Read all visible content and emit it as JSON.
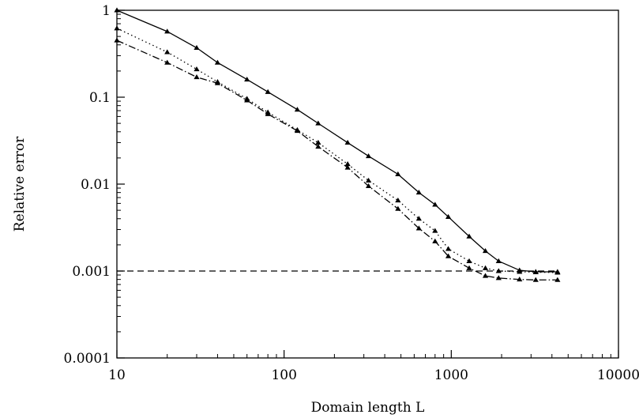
{
  "chart_data": {
    "type": "line",
    "title": "",
    "xlabel": "Domain length L",
    "ylabel": "Relative error",
    "xscale": "log",
    "yscale": "log",
    "xlim": [
      10,
      10000
    ],
    "ylim": [
      0.0001,
      1
    ],
    "grid": false,
    "legend": "none",
    "x_ticks": [
      {
        "value": 10,
        "label": "10"
      },
      {
        "value": 100,
        "label": "100"
      },
      {
        "value": 1000,
        "label": "1000"
      },
      {
        "value": 10000,
        "label": "10000"
      }
    ],
    "y_ticks": [
      {
        "value": 1,
        "label": "1"
      },
      {
        "value": 0.1,
        "label": "0.1"
      },
      {
        "value": 0.01,
        "label": "0.01"
      },
      {
        "value": 0.001,
        "label": "0.001"
      },
      {
        "value": 0.0001,
        "label": "0.0001"
      }
    ],
    "series": [
      {
        "style": "solid",
        "marker": "triangle",
        "color": "#000000",
        "x": [
          10,
          20,
          30,
          40,
          60,
          80,
          120,
          160,
          240,
          320,
          480,
          640,
          800,
          960,
          1280,
          1600,
          1920,
          2560,
          3200,
          4320
        ],
        "y": [
          1.0,
          0.57,
          0.37,
          0.25,
          0.16,
          0.115,
          0.072,
          0.05,
          0.03,
          0.021,
          0.013,
          0.008,
          0.0058,
          0.0042,
          0.0025,
          0.0017,
          0.0013,
          0.00102,
          0.00098,
          0.00098
        ]
      },
      {
        "style": "dotted",
        "marker": "triangle",
        "color": "#000000",
        "x": [
          10,
          20,
          30,
          40,
          60,
          80,
          120,
          160,
          240,
          320,
          480,
          640,
          800,
          960,
          1280,
          1600,
          1920,
          2560,
          3200,
          4320
        ],
        "y": [
          0.62,
          0.33,
          0.21,
          0.15,
          0.096,
          0.067,
          0.042,
          0.03,
          0.017,
          0.011,
          0.0065,
          0.004,
          0.0029,
          0.0018,
          0.0013,
          0.00108,
          0.001,
          0.00098,
          0.00097,
          0.00096
        ]
      },
      {
        "style": "dashdot",
        "marker": "triangle",
        "color": "#000000",
        "x": [
          10,
          20,
          30,
          40,
          60,
          80,
          120,
          160,
          240,
          320,
          480,
          640,
          800,
          960,
          1280,
          1600,
          1920,
          2560,
          3200,
          4320
        ],
        "y": [
          0.45,
          0.25,
          0.17,
          0.145,
          0.092,
          0.064,
          0.041,
          0.027,
          0.0155,
          0.0095,
          0.0052,
          0.0031,
          0.0022,
          0.00148,
          0.00108,
          0.00088,
          0.00083,
          0.0008,
          0.00079,
          0.00079
        ]
      },
      {
        "style": "dashed",
        "marker": "none",
        "color": "#000000",
        "x": [
          10,
          4320
        ],
        "y": [
          0.001,
          0.001
        ]
      }
    ]
  }
}
